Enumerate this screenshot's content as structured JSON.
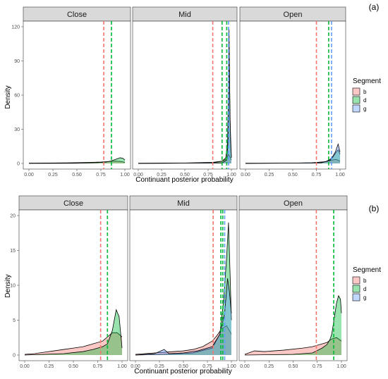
{
  "colors": {
    "b": "#F8766D",
    "d": "#00BA38",
    "g": "#619CFF"
  },
  "chart_data": [
    {
      "type": "area",
      "figure_label": "(a)",
      "xlabel": "Continuant posterior probability",
      "ylabel": "Density",
      "xlim": [
        0,
        1
      ],
      "ylim": [
        0,
        120
      ],
      "x_ticks": [
        0.0,
        0.25,
        0.5,
        0.75,
        1.0
      ],
      "x_tick_labels": [
        "0.00",
        "0.25",
        "0.50",
        "0.75",
        "1.00"
      ],
      "y_ticks": [
        0,
        30,
        60,
        90,
        120
      ],
      "y_tick_labels": [
        "0",
        "30",
        "60",
        "90",
        "120"
      ],
      "legend": {
        "title": "Segment",
        "position": "right",
        "entries": [
          "b",
          "d",
          "g"
        ]
      },
      "facets": [
        {
          "label": "Close",
          "vlines": [
            {
              "segment": "b",
              "x": 0.78
            },
            {
              "segment": "d",
              "x": 0.86
            }
          ],
          "series": [
            {
              "segment": "b",
              "points": [
                [
                  0,
                  0.3
                ],
                [
                  0.2,
                  0.4
                ],
                [
                  0.4,
                  0.5
                ],
                [
                  0.6,
                  0.8
                ],
                [
                  0.75,
                  1.2
                ],
                [
                  0.85,
                  1.8
                ],
                [
                  0.9,
                  2
                ],
                [
                  0.95,
                  1.8
                ],
                [
                  1,
                  1
                ]
              ]
            },
            {
              "segment": "d",
              "points": [
                [
                  0,
                  0
                ],
                [
                  0.5,
                  0.2
                ],
                [
                  0.7,
                  0.6
                ],
                [
                  0.8,
                  1.2
                ],
                [
                  0.85,
                  2
                ],
                [
                  0.9,
                  3.5
                ],
                [
                  0.95,
                  5
                ],
                [
                  0.98,
                  4.5
                ],
                [
                  1,
                  3
                ]
              ]
            }
          ]
        },
        {
          "label": "Mid",
          "vlines": [
            {
              "segment": "b",
              "x": 0.8
            },
            {
              "segment": "d",
              "x": 0.9
            },
            {
              "segment": "d",
              "x": 0.95
            },
            {
              "segment": "g",
              "x": 0.97
            }
          ],
          "series": [
            {
              "segment": "b",
              "points": [
                [
                  0,
                  0.2
                ],
                [
                  0.5,
                  0.4
                ],
                [
                  0.8,
                  1
                ],
                [
                  0.9,
                  2
                ],
                [
                  0.95,
                  4
                ],
                [
                  0.97,
                  8
                ],
                [
                  0.99,
                  5
                ],
                [
                  1,
                  3
                ]
              ]
            },
            {
              "segment": "d",
              "points": [
                [
                  0,
                  0
                ],
                [
                  0.8,
                  0.5
                ],
                [
                  0.9,
                  2
                ],
                [
                  0.94,
                  5
                ],
                [
                  0.96,
                  20
                ],
                [
                  0.975,
                  100
                ],
                [
                  0.99,
                  20
                ],
                [
                  1,
                  5
                ]
              ]
            },
            {
              "segment": "g",
              "points": [
                [
                  0,
                  0
                ],
                [
                  0.9,
                  0.5
                ],
                [
                  0.95,
                  3
                ],
                [
                  0.965,
                  20
                ],
                [
                  0.975,
                  118
                ],
                [
                  0.985,
                  40
                ],
                [
                  1,
                  5
                ]
              ]
            }
          ]
        },
        {
          "label": "Open",
          "vlines": [
            {
              "segment": "b",
              "x": 0.75
            },
            {
              "segment": "d",
              "x": 0.88
            },
            {
              "segment": "g",
              "x": 0.91
            }
          ],
          "series": [
            {
              "segment": "b",
              "points": [
                [
                  0,
                  0.2
                ],
                [
                  0.5,
                  0.3
                ],
                [
                  0.7,
                  0.6
                ],
                [
                  0.85,
                  1.5
                ],
                [
                  0.92,
                  3
                ],
                [
                  0.96,
                  3.5
                ],
                [
                  1,
                  2
                ]
              ]
            },
            {
              "segment": "d",
              "points": [
                [
                  0,
                  0
                ],
                [
                  0.7,
                  0.4
                ],
                [
                  0.85,
                  1.5
                ],
                [
                  0.92,
                  5
                ],
                [
                  0.96,
                  10
                ],
                [
                  0.98,
                  12
                ],
                [
                  1,
                  8
                ]
              ]
            },
            {
              "segment": "g",
              "points": [
                [
                  0,
                  0
                ],
                [
                  0.8,
                  0.5
                ],
                [
                  0.9,
                  3
                ],
                [
                  0.95,
                  10
                ],
                [
                  0.98,
                  17
                ],
                [
                  1,
                  10
                ]
              ]
            }
          ]
        }
      ]
    },
    {
      "type": "area",
      "figure_label": "(b)",
      "xlabel": "Continuant posterior probability",
      "ylabel": "Density",
      "xlim": [
        0,
        1
      ],
      "ylim": [
        0,
        20
      ],
      "x_ticks": [
        0.0,
        0.25,
        0.5,
        0.75,
        1.0
      ],
      "x_tick_labels": [
        "0.00",
        "0.25",
        "0.50",
        "0.75",
        "1.00"
      ],
      "y_ticks": [
        0,
        5,
        10,
        15,
        20
      ],
      "y_tick_labels": [
        "0",
        "5",
        "10",
        "15",
        "20"
      ],
      "legend": {
        "title": "Segment",
        "position": "right",
        "entries": [
          "b",
          "d",
          "g"
        ]
      },
      "facets": [
        {
          "label": "Close",
          "vlines": [
            {
              "segment": "b",
              "x": 0.78
            },
            {
              "segment": "d",
              "x": 0.85
            }
          ],
          "series": [
            {
              "segment": "b",
              "points": [
                [
                  0,
                  0.1
                ],
                [
                  0.1,
                  0.2
                ],
                [
                  0.2,
                  0.4
                ],
                [
                  0.3,
                  0.6
                ],
                [
                  0.4,
                  0.8
                ],
                [
                  0.5,
                  1.0
                ],
                [
                  0.6,
                  1.2
                ],
                [
                  0.7,
                  1.6
                ],
                [
                  0.8,
                  2.0
                ],
                [
                  0.85,
                  2.6
                ],
                [
                  0.9,
                  3.2
                ],
                [
                  0.95,
                  3.2
                ],
                [
                  1,
                  2.6
                ]
              ]
            },
            {
              "segment": "d",
              "points": [
                [
                  0,
                  0
                ],
                [
                  0.2,
                  0.1
                ],
                [
                  0.4,
                  0.2
                ],
                [
                  0.6,
                  0.5
                ],
                [
                  0.7,
                  0.8
                ],
                [
                  0.8,
                  1.2
                ],
                [
                  0.85,
                  1.6
                ],
                [
                  0.9,
                  3.5
                ],
                [
                  0.94,
                  6.5
                ],
                [
                  0.97,
                  5.5
                ],
                [
                  1,
                  1
                ]
              ]
            }
          ]
        },
        {
          "label": "Mid",
          "vlines": [
            {
              "segment": "b",
              "x": 0.81
            },
            {
              "segment": "d",
              "x": 0.89
            },
            {
              "segment": "d",
              "x": 0.91
            },
            {
              "segment": "g",
              "x": 0.93
            }
          ],
          "series": [
            {
              "segment": "b",
              "points": [
                [
                  0,
                  0.1
                ],
                [
                  0.1,
                  0.2
                ],
                [
                  0.2,
                  0.3
                ],
                [
                  0.3,
                  0.4
                ],
                [
                  0.4,
                  0.5
                ],
                [
                  0.5,
                  0.6
                ],
                [
                  0.6,
                  0.8
                ],
                [
                  0.7,
                  1.2
                ],
                [
                  0.8,
                  2.0
                ],
                [
                  0.85,
                  2.8
                ],
                [
                  0.9,
                  3.8
                ],
                [
                  0.95,
                  4.2
                ],
                [
                  1,
                  3
                ]
              ]
            },
            {
              "segment": "d",
              "points": [
                [
                  0,
                  0
                ],
                [
                  0.3,
                  0.1
                ],
                [
                  0.6,
                  0.3
                ],
                [
                  0.8,
                  1
                ],
                [
                  0.88,
                  3
                ],
                [
                  0.92,
                  8
                ],
                [
                  0.95,
                  14
                ],
                [
                  0.97,
                  19
                ],
                [
                  0.99,
                  10
                ],
                [
                  1,
                  5
                ]
              ]
            },
            {
              "segment": "g",
              "points": [
                [
                  0,
                  0
                ],
                [
                  0.2,
                  0.2
                ],
                [
                  0.3,
                  0.8
                ],
                [
                  0.35,
                  0.2
                ],
                [
                  0.5,
                  0.3
                ],
                [
                  0.65,
                  0.6
                ],
                [
                  0.8,
                  1.2
                ],
                [
                  0.88,
                  3
                ],
                [
                  0.93,
                  6
                ],
                [
                  0.96,
                  11
                ],
                [
                  0.98,
                  9
                ],
                [
                  1,
                  6
                ]
              ]
            }
          ]
        },
        {
          "label": "Open",
          "vlines": [
            {
              "segment": "b",
              "x": 0.74
            },
            {
              "segment": "d",
              "x": 0.92
            }
          ],
          "series": [
            {
              "segment": "b",
              "points": [
                [
                  0,
                  0.1
                ],
                [
                  0.1,
                  0.6
                ],
                [
                  0.2,
                  0.5
                ],
                [
                  0.4,
                  0.7
                ],
                [
                  0.6,
                  1.0
                ],
                [
                  0.7,
                  1.2
                ],
                [
                  0.8,
                  1.6
                ],
                [
                  0.85,
                  1.8
                ],
                [
                  0.9,
                  2.3
                ],
                [
                  0.95,
                  2.5
                ],
                [
                  1,
                  2
                ]
              ]
            },
            {
              "segment": "d",
              "points": [
                [
                  0,
                  0
                ],
                [
                  0.5,
                  0.1
                ],
                [
                  0.7,
                  0.3
                ],
                [
                  0.8,
                  1
                ],
                [
                  0.85,
                  1.5
                ],
                [
                  0.88,
                  2.2
                ],
                [
                  0.9,
                  3
                ],
                [
                  0.95,
                  7.5
                ],
                [
                  0.97,
                  8.5
                ],
                [
                  0.99,
                  8
                ],
                [
                  1,
                  6
                ]
              ]
            }
          ]
        }
      ]
    }
  ]
}
